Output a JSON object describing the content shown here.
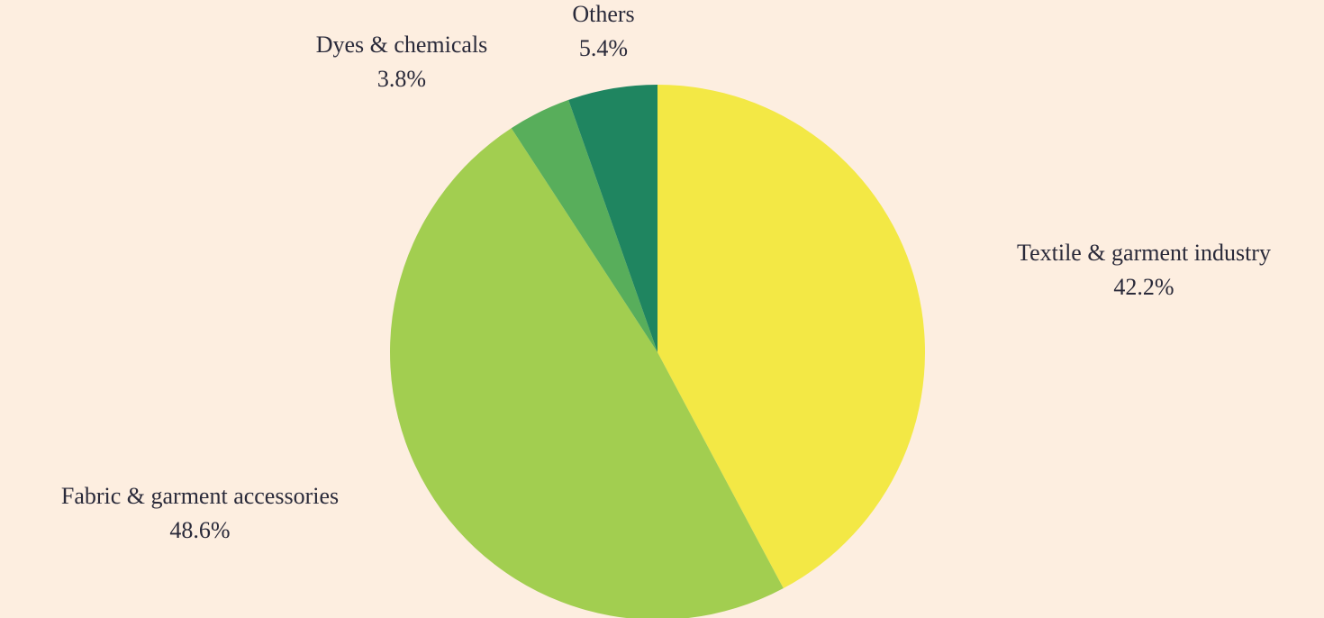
{
  "chart_data": {
    "type": "pie",
    "categories": [
      "Textile & garment industry",
      "Fabric & garment accessories",
      "Dyes & chemicals",
      "Others"
    ],
    "values": [
      42.2,
      48.6,
      3.8,
      5.4
    ],
    "value_labels": [
      "42.2%",
      "48.6%",
      "3.8%",
      "5.4%"
    ],
    "colors": [
      "#f3e845",
      "#a2ce50",
      "#58ae5b",
      "#1f8560"
    ]
  }
}
